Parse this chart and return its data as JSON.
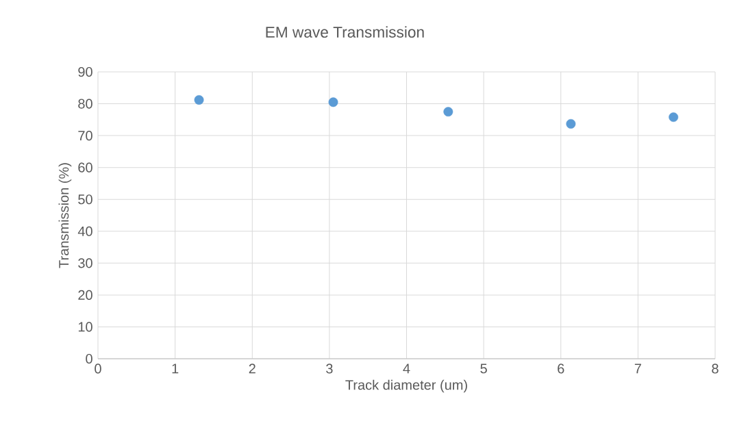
{
  "chart_data": {
    "type": "scatter",
    "title": "EM wave Transmission",
    "xlabel": "Track diameter (um)",
    "ylabel": "Transmission (%)",
    "x": [
      1.31,
      3.05,
      4.54,
      6.13,
      7.46
    ],
    "values": [
      81.2,
      80.5,
      77.5,
      73.7,
      75.8
    ],
    "color": "#5b9bd5",
    "marker": "circle",
    "xlim": [
      0,
      8
    ],
    "ylim": [
      0,
      90
    ],
    "xticks": [
      0,
      1,
      2,
      3,
      4,
      5,
      6,
      7,
      8
    ],
    "yticks": [
      0,
      10,
      20,
      30,
      40,
      50,
      60,
      70,
      80,
      90
    ],
    "grid": true
  }
}
